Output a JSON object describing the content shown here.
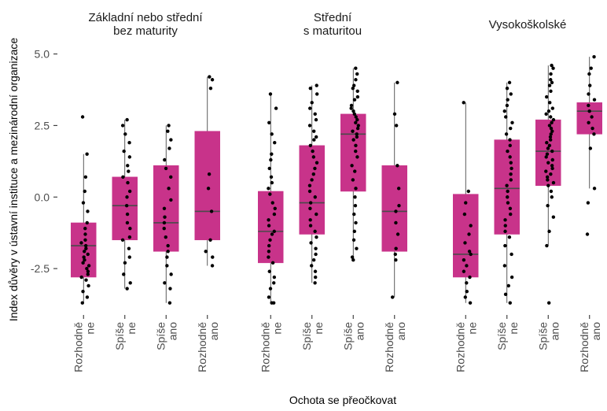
{
  "chart_data": {
    "type": "boxplot",
    "xlabel": "Ochota se přeočkovat",
    "ylabel": "Index důvěry v ústavní instituce a mezinárodní organizace",
    "ylim": [
      -3.9,
      5.4
    ],
    "yticks": [
      -2.5,
      0.0,
      2.5,
      5.0
    ],
    "ytick_labels": [
      "-2.5",
      "0.0",
      "2.5",
      "5.0"
    ],
    "categories": [
      [
        "Rozhodně",
        "ne"
      ],
      [
        "Spíše",
        "ne"
      ],
      [
        "Spíše",
        "ano"
      ],
      [
        "Rozhodně",
        "ano"
      ]
    ],
    "colors": {
      "box_fill": "#C8338A",
      "box_line": "#4a4a4a",
      "point": "#000000",
      "whisker": "#333333"
    },
    "grid": false,
    "panels": [
      {
        "title": [
          "Základní nebo střední",
          "bez maturity"
        ],
        "boxes": [
          {
            "whisker_low": -3.7,
            "q1": -2.8,
            "median": -1.7,
            "q3": -0.9,
            "whisker_high": 1.5,
            "points": [
              2.8,
              1.5,
              0.7,
              0.2,
              -0.2,
              -0.5,
              -0.9,
              -1.1,
              -1.3,
              -1.5,
              -1.6,
              -1.7,
              -1.8,
              -1.9,
              -2.0,
              -2.1,
              -2.2,
              -2.3,
              -2.4,
              -2.5,
              -2.6,
              -2.7,
              -2.8,
              -2.9,
              -3.1,
              -3.3,
              -3.5,
              -3.7
            ]
          },
          {
            "whisker_low": -3.2,
            "q1": -1.5,
            "median": -0.3,
            "q3": 0.7,
            "whisker_high": 2.7,
            "points": [
              2.7,
              2.5,
              2.2,
              1.9,
              1.6,
              1.4,
              1.1,
              0.9,
              0.7,
              0.5,
              0.2,
              0.0,
              -0.3,
              -0.6,
              -0.9,
              -1.1,
              -1.4,
              -1.5,
              -1.8,
              -2.1,
              -2.3,
              -2.7,
              -3.0,
              -3.2
            ]
          },
          {
            "whisker_low": -3.7,
            "q1": -1.9,
            "median": -0.9,
            "q3": 1.1,
            "whisker_high": 2.5,
            "points": [
              2.5,
              2.3,
              2.0,
              1.7,
              1.3,
              1.0,
              0.7,
              0.3,
              -0.1,
              -0.4,
              -0.7,
              -0.9,
              -1.1,
              -1.4,
              -1.7,
              -1.9,
              -2.1,
              -2.4,
              -2.7,
              -3.0,
              -3.2,
              -3.7
            ]
          },
          {
            "whisker_low": -2.4,
            "q1": -1.5,
            "median": -0.5,
            "q3": 2.3,
            "whisker_high": 4.2,
            "points": [
              4.2,
              4.1,
              3.8,
              0.8,
              0.3,
              -0.5,
              -1.5,
              -1.9,
              -2.1,
              -2.4
            ]
          }
        ]
      },
      {
        "title": [
          "Střední",
          "s maturitou"
        ],
        "boxes": [
          {
            "whisker_low": -3.7,
            "q1": -2.3,
            "median": -1.2,
            "q3": 0.2,
            "whisker_high": 3.6,
            "points": [
              3.6,
              3.1,
              2.6,
              2.2,
              1.9,
              1.5,
              1.3,
              1.0,
              0.7,
              0.5,
              0.3,
              0.1,
              -0.2,
              -0.4,
              -0.6,
              -0.8,
              -1.0,
              -1.2,
              -1.3,
              -1.5,
              -1.7,
              -1.9,
              -2.1,
              -2.3,
              -2.6,
              -2.8,
              -3.0,
              -3.2,
              -3.5,
              -3.7,
              -3.7
            ]
          },
          {
            "whisker_low": -3.0,
            "q1": -1.3,
            "median": -0.2,
            "q3": 1.8,
            "whisker_high": 3.9,
            "points": [
              3.9,
              3.8,
              3.6,
              3.3,
              3.1,
              2.9,
              2.7,
              2.5,
              2.3,
              2.1,
              2.0,
              1.8,
              1.6,
              1.4,
              1.2,
              1.0,
              0.8,
              0.6,
              0.4,
              0.2,
              0.0,
              -0.2,
              -0.4,
              -0.6,
              -0.8,
              -1.0,
              -1.2,
              -1.4,
              -1.6,
              -1.8,
              -2.0,
              -2.2,
              -2.4,
              -2.6,
              -2.8,
              -3.0
            ]
          },
          {
            "whisker_low": -2.2,
            "q1": 0.2,
            "median": 2.2,
            "q3": 2.9,
            "whisker_high": 4.5,
            "points": [
              4.5,
              4.3,
              4.1,
              3.9,
              3.8,
              3.7,
              3.5,
              3.4,
              3.2,
              3.1,
              3.0,
              2.9,
              2.8,
              2.7,
              2.6,
              2.5,
              2.4,
              2.3,
              2.2,
              2.1,
              2.0,
              1.8,
              1.6,
              1.4,
              1.1,
              0.9,
              0.6,
              0.3,
              0.0,
              -0.3,
              -0.6,
              -0.9,
              -1.2,
              -1.5,
              -1.8,
              -2.1,
              -2.2
            ]
          },
          {
            "whisker_low": -3.5,
            "q1": -1.9,
            "median": -0.5,
            "q3": 1.1,
            "whisker_high": 4.0,
            "points": [
              4.0,
              2.9,
              2.5,
              1.1,
              0.3,
              -0.3,
              -0.5,
              -0.9,
              -1.3,
              -1.8,
              -2.0,
              -2.2,
              -3.5
            ]
          }
        ]
      },
      {
        "title": [
          "Vysokoškolské"
        ],
        "boxes": [
          {
            "whisker_low": -3.7,
            "q1": -2.8,
            "median": -2.0,
            "q3": 0.1,
            "whisker_high": 3.3,
            "points": [
              3.3,
              0.2,
              -0.2,
              -0.6,
              -1.0,
              -1.3,
              -1.6,
              -1.9,
              -2.0,
              -2.2,
              -2.4,
              -2.6,
              -2.8,
              -3.0,
              -3.3,
              -3.5,
              -3.7
            ]
          },
          {
            "whisker_low": -3.7,
            "q1": -1.3,
            "median": 0.3,
            "q3": 2.0,
            "whisker_high": 4.0,
            "points": [
              4.0,
              3.8,
              3.6,
              3.4,
              3.2,
              3.0,
              2.8,
              2.6,
              2.4,
              2.2,
              2.0,
              1.8,
              1.6,
              1.4,
              1.2,
              1.0,
              0.8,
              0.6,
              0.4,
              0.2,
              0.0,
              -0.2,
              -0.4,
              -0.6,
              -0.8,
              -1.0,
              -1.2,
              -1.4,
              -1.7,
              -2.0,
              -2.4,
              -2.8,
              -3.1,
              -3.4,
              -3.7
            ]
          },
          {
            "whisker_low": -1.7,
            "q1": 0.4,
            "median": 1.6,
            "q3": 2.7,
            "whisker_high": 4.6,
            "points": [
              4.6,
              4.5,
              4.3,
              4.1,
              4.0,
              3.9,
              3.7,
              3.5,
              3.3,
              3.1,
              3.0,
              2.9,
              2.8,
              2.7,
              2.6,
              2.5,
              2.4,
              2.3,
              2.2,
              2.1,
              2.0,
              1.9,
              1.8,
              1.7,
              1.6,
              1.5,
              1.4,
              1.3,
              1.2,
              1.1,
              1.0,
              0.9,
              0.8,
              0.7,
              0.6,
              0.5,
              0.4,
              0.2,
              0.0,
              -0.3,
              -0.7,
              -1.2,
              -1.7,
              -3.7
            ]
          },
          {
            "whisker_low": 0.3,
            "q1": 2.2,
            "median": 3.0,
            "q3": 3.3,
            "whisker_high": 4.9,
            "points": [
              4.9,
              4.5,
              4.3,
              3.9,
              3.6,
              3.4,
              3.2,
              3.0,
              2.8,
              2.6,
              2.4,
              2.2,
              1.7,
              0.3,
              -0.2,
              -1.3
            ]
          }
        ]
      }
    ]
  }
}
